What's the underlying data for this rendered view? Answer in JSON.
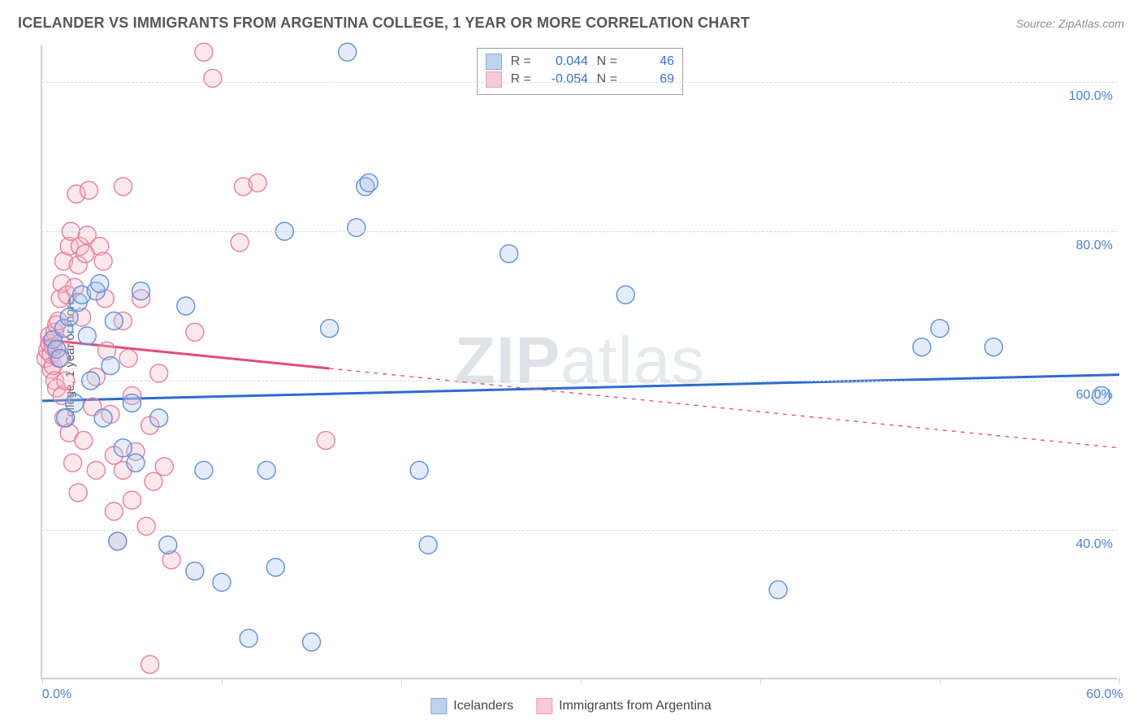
{
  "title": "ICELANDER VS IMMIGRANTS FROM ARGENTINA COLLEGE, 1 YEAR OR MORE CORRELATION CHART",
  "source_label": "Source: ZipAtlas.com",
  "watermark": "ZIPatlas",
  "chart": {
    "type": "scatter",
    "ylabel": "College, 1 year or more",
    "xlim": [
      0,
      60
    ],
    "ylim": [
      20,
      105
    ],
    "x_ticks": [
      0,
      10,
      20,
      30,
      40,
      50,
      60
    ],
    "x_tick_labels": {
      "0": "0.0%",
      "60": "60.0%"
    },
    "y_gridlines": [
      40,
      60,
      80,
      100
    ],
    "y_tick_labels": {
      "40": "40.0%",
      "60": "60.0%",
      "80": "80.0%",
      "100": "100.0%"
    },
    "background_color": "#ffffff",
    "grid_color": "#d6d9db",
    "axis_color": "#cfd3d7",
    "tick_label_color": "#4b7fd1",
    "marker_radius": 11,
    "marker_fill_opacity": 0.32,
    "marker_stroke_width": 1.4,
    "series": [
      {
        "key": "blue",
        "label": "Icelanders",
        "color_stroke": "#5f8fd8",
        "color_fill": "#a9c4ea",
        "R": "0.044",
        "N": "46",
        "trend": {
          "x1": 0,
          "y1": 57.3,
          "x2": 60,
          "y2": 60.8,
          "solid_until_x": 60,
          "color": "#2f6bd0",
          "width": 3
        },
        "points": [
          [
            0.6,
            65.5
          ],
          [
            0.8,
            64.2
          ],
          [
            1.0,
            63.0
          ],
          [
            1.2,
            67.0
          ],
          [
            1.5,
            68.5
          ],
          [
            1.3,
            55.0
          ],
          [
            1.8,
            57.0
          ],
          [
            2.0,
            70.5
          ],
          [
            2.2,
            71.5
          ],
          [
            2.5,
            66.0
          ],
          [
            2.7,
            60.0
          ],
          [
            3.0,
            72.0
          ],
          [
            3.2,
            73.0
          ],
          [
            3.4,
            55.0
          ],
          [
            3.8,
            62.0
          ],
          [
            4.0,
            68.0
          ],
          [
            4.2,
            38.5
          ],
          [
            4.5,
            51.0
          ],
          [
            5.0,
            57.0
          ],
          [
            5.2,
            49.0
          ],
          [
            5.5,
            72.0
          ],
          [
            6.5,
            55.0
          ],
          [
            7.0,
            38.0
          ],
          [
            8.0,
            70.0
          ],
          [
            8.5,
            34.5
          ],
          [
            9.0,
            48.0
          ],
          [
            10.0,
            33.0
          ],
          [
            11.5,
            25.5
          ],
          [
            12.5,
            48.0
          ],
          [
            13.0,
            35.0
          ],
          [
            13.5,
            80.0
          ],
          [
            15.0,
            25.0
          ],
          [
            16.0,
            67.0
          ],
          [
            17.0,
            104.0
          ],
          [
            17.5,
            80.5
          ],
          [
            18.0,
            86.0
          ],
          [
            18.2,
            86.5
          ],
          [
            21.0,
            48.0
          ],
          [
            21.5,
            38.0
          ],
          [
            26.0,
            77.0
          ],
          [
            32.5,
            71.5
          ],
          [
            41.0,
            32.0
          ],
          [
            49.0,
            64.5
          ],
          [
            50.0,
            67.0
          ],
          [
            53.0,
            64.5
          ],
          [
            59.0,
            58.0
          ]
        ]
      },
      {
        "key": "pink",
        "label": "Immigrants from Argentina",
        "color_stroke": "#e77f9e",
        "color_fill": "#f4b8c8",
        "R": "-0.054",
        "N": "69",
        "trend": {
          "x1": 0,
          "y1": 65.5,
          "x2": 60,
          "y2": 51.0,
          "solid_until_x": 16,
          "color": "#e24b7a",
          "width": 3
        },
        "points": [
          [
            0.2,
            63.0
          ],
          [
            0.3,
            64.0
          ],
          [
            0.4,
            65.0
          ],
          [
            0.4,
            66.0
          ],
          [
            0.5,
            61.5
          ],
          [
            0.5,
            63.5
          ],
          [
            0.6,
            62.0
          ],
          [
            0.6,
            64.5
          ],
          [
            0.7,
            66.5
          ],
          [
            0.7,
            60.0
          ],
          [
            0.8,
            67.5
          ],
          [
            0.8,
            59.0
          ],
          [
            0.9,
            63.0
          ],
          [
            0.9,
            68.0
          ],
          [
            1.0,
            65.0
          ],
          [
            1.0,
            71.0
          ],
          [
            1.1,
            73.0
          ],
          [
            1.1,
            58.0
          ],
          [
            1.2,
            76.0
          ],
          [
            1.2,
            55.0
          ],
          [
            1.3,
            60.0
          ],
          [
            1.4,
            71.5
          ],
          [
            1.5,
            78.0
          ],
          [
            1.5,
            53.0
          ],
          [
            1.6,
            80.0
          ],
          [
            1.7,
            49.0
          ],
          [
            1.8,
            72.5
          ],
          [
            1.9,
            85.0
          ],
          [
            2.0,
            75.5
          ],
          [
            2.0,
            45.0
          ],
          [
            2.1,
            78.0
          ],
          [
            2.2,
            68.5
          ],
          [
            2.3,
            52.0
          ],
          [
            2.4,
            77.0
          ],
          [
            2.5,
            79.5
          ],
          [
            2.6,
            85.5
          ],
          [
            2.8,
            56.5
          ],
          [
            3.0,
            60.5
          ],
          [
            3.0,
            48.0
          ],
          [
            3.2,
            78.0
          ],
          [
            3.4,
            76.0
          ],
          [
            3.5,
            71.0
          ],
          [
            3.6,
            64.0
          ],
          [
            3.8,
            55.5
          ],
          [
            4.0,
            50.0
          ],
          [
            4.0,
            42.5
          ],
          [
            4.2,
            38.5
          ],
          [
            4.5,
            48.0
          ],
          [
            4.5,
            68.0
          ],
          [
            4.5,
            86.0
          ],
          [
            4.8,
            63.0
          ],
          [
            5.0,
            58.0
          ],
          [
            5.0,
            44.0
          ],
          [
            5.2,
            50.5
          ],
          [
            5.5,
            71.0
          ],
          [
            5.8,
            40.5
          ],
          [
            6.0,
            54.0
          ],
          [
            6.0,
            22.0
          ],
          [
            6.2,
            46.5
          ],
          [
            6.5,
            61.0
          ],
          [
            6.8,
            48.5
          ],
          [
            7.2,
            36.0
          ],
          [
            8.5,
            66.5
          ],
          [
            9.0,
            104.0
          ],
          [
            9.5,
            100.5
          ],
          [
            11.0,
            78.5
          ],
          [
            11.2,
            86.0
          ],
          [
            12.0,
            86.5
          ],
          [
            15.8,
            52.0
          ]
        ]
      }
    ],
    "legend_top": {
      "R_label": "R =",
      "N_label": "N ="
    },
    "legend_bottom_order": [
      "blue",
      "pink"
    ]
  }
}
